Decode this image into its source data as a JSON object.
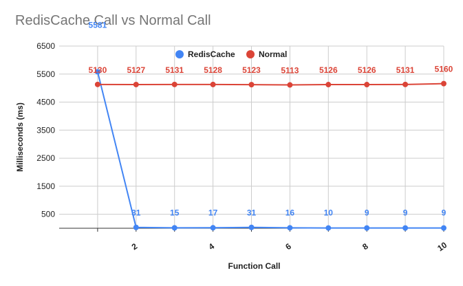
{
  "chart_data": {
    "type": "line",
    "title": "RedisCache Call vs Normal Call",
    "xlabel": "Function Call",
    "ylabel": "Milliseconds (ms)",
    "x": [
      1,
      2,
      3,
      4,
      5,
      6,
      7,
      8,
      9,
      10
    ],
    "x_ticks": [
      "2",
      "4",
      "6",
      "8",
      "10"
    ],
    "y_ticks": [
      "500",
      "1500",
      "2500",
      "3500",
      "4500",
      "5500",
      "6500"
    ],
    "ylim": [
      0,
      6500
    ],
    "grid": true,
    "legend_position": "top",
    "series": [
      {
        "name": "RedisCache",
        "color": "#4285f4",
        "values": [
          5581,
          31,
          15,
          17,
          31,
          16,
          10,
          9,
          9,
          9
        ]
      },
      {
        "name": "Normal",
        "color": "#db4437",
        "values": [
          5130,
          5127,
          5131,
          5128,
          5123,
          5113,
          5126,
          5126,
          5131,
          5160
        ]
      }
    ]
  }
}
